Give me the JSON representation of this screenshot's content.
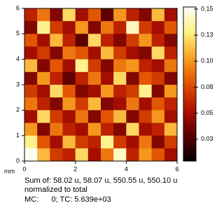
{
  "chart_data": {
    "type": "heatmap",
    "x_label": "mm",
    "xlim": [
      0,
      6
    ],
    "ylim": [
      0,
      6
    ],
    "xticks": [
      0,
      2,
      4,
      6
    ],
    "yticks": [
      0,
      1,
      2,
      3,
      4,
      5,
      6
    ],
    "clim": [
      0.004,
      0.152
    ],
    "cticks": [
      {
        "value": 0.025,
        "label": "0.03"
      },
      {
        "value": 0.05,
        "label": "0.05"
      },
      {
        "value": 0.075,
        "label": "0.08"
      },
      {
        "value": 0.1,
        "label": "0.10"
      },
      {
        "value": 0.125,
        "label": "0.13"
      },
      {
        "value": 0.15,
        "label": "0.15"
      }
    ],
    "colormap": [
      "#000000",
      "#5a0000",
      "#b01000",
      "#e05000",
      "#f8a020",
      "#fff080",
      "#ffffff"
    ],
    "z": [
      [
        0.06,
        0.09,
        0.04,
        0.12,
        0.05,
        0.08,
        0.03,
        0.1,
        0.06,
        0.04,
        0.11,
        0.05
      ],
      [
        0.04,
        0.13,
        0.07,
        0.05,
        0.1,
        0.04,
        0.09,
        0.06,
        0.14,
        0.07,
        0.05,
        0.08
      ],
      [
        0.08,
        0.05,
        0.11,
        0.06,
        0.03,
        0.12,
        0.06,
        0.04,
        0.07,
        0.1,
        0.06,
        0.04
      ],
      [
        0.05,
        0.07,
        0.04,
        0.09,
        0.08,
        0.05,
        0.11,
        0.07,
        0.05,
        0.04,
        0.12,
        0.06
      ],
      [
        0.11,
        0.04,
        0.08,
        0.05,
        0.13,
        0.07,
        0.04,
        0.09,
        0.1,
        0.06,
        0.05,
        0.09
      ],
      [
        0.04,
        0.1,
        0.06,
        0.03,
        0.06,
        0.09,
        0.05,
        0.12,
        0.04,
        0.08,
        0.07,
        0.04
      ],
      [
        0.07,
        0.05,
        0.12,
        0.08,
        0.04,
        0.05,
        0.1,
        0.06,
        0.07,
        0.13,
        0.04,
        0.1
      ],
      [
        0.09,
        0.06,
        0.04,
        0.1,
        0.07,
        0.11,
        0.04,
        0.05,
        0.09,
        0.05,
        0.08,
        0.06
      ],
      [
        0.05,
        0.12,
        0.07,
        0.05,
        0.09,
        0.04,
        0.08,
        0.11,
        0.04,
        0.07,
        0.1,
        0.05
      ],
      [
        0.1,
        0.04,
        0.09,
        0.06,
        0.05,
        0.1,
        0.06,
        0.04,
        0.12,
        0.05,
        0.06,
        0.11
      ],
      [
        0.13,
        0.08,
        0.05,
        0.11,
        0.07,
        0.06,
        0.13,
        0.07,
        0.05,
        0.09,
        0.04,
        0.07
      ],
      [
        0.15,
        0.11,
        0.07,
        0.06,
        0.12,
        0.05,
        0.09,
        0.14,
        0.06,
        0.1,
        0.08,
        0.05
      ]
    ],
    "caption": [
      "Sum of: 58.02 u, 58.07 u, 550.55 u, 550.10 u",
      "normalized to total",
      "MC:      0; TC: 5.639e+03"
    ]
  }
}
